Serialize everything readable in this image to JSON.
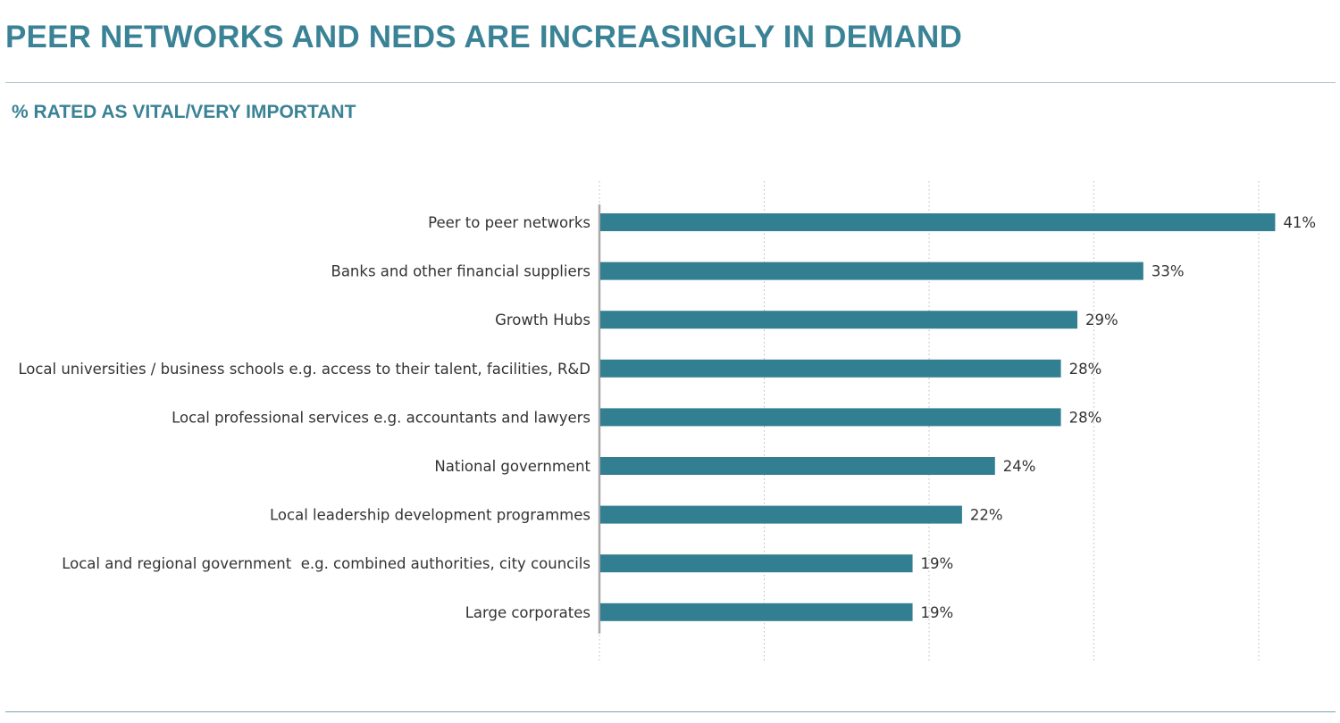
{
  "header": {
    "title": "PEER NETWORKS AND NEDS ARE INCREASINGLY IN DEMAND",
    "subtitle": "% RATED AS VITAL/VERY IMPORTANT"
  },
  "colors": {
    "bar": "#337f92",
    "title": "#3a8295"
  },
  "chart_data": {
    "type": "bar",
    "orientation": "horizontal",
    "title": "PEER NETWORKS AND NEDS ARE INCREASINGLY IN DEMAND",
    "subtitle": "% RATED AS VITAL/VERY IMPORTANT",
    "categories": [
      "Peer to peer networks",
      "Banks and other financial suppliers",
      "Growth Hubs",
      "Local universities / business schools e.g. access to their talent, facilities, R&D",
      "Local professional services e.g. accountants and lawyers",
      "National government",
      "Local leadership development programmes",
      "Local and regional government  e.g. combined authorities, city councils",
      "Large corporates"
    ],
    "values": [
      41,
      33,
      29,
      28,
      28,
      24,
      22,
      19,
      19
    ],
    "value_labels": [
      "41%",
      "33%",
      "29%",
      "28%",
      "28%",
      "24%",
      "22%",
      "19%",
      "19%"
    ],
    "xlim": [
      0,
      40
    ],
    "gridlines": [
      0,
      10,
      20,
      30,
      40
    ],
    "grid": "vertical dotted",
    "legend": "none"
  }
}
